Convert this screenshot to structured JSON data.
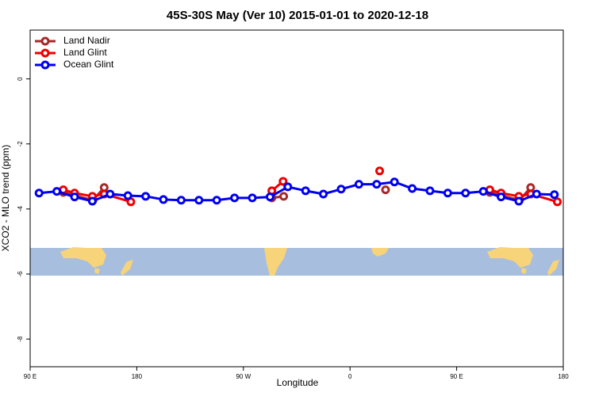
{
  "chart_data": {
    "type": "line",
    "title": "45S-30S May (Ver 10)   2015-01-01 to 2020-12-18",
    "xlabel": "Longitude",
    "ylabel": "XCO2 - MLO trend (ppm)",
    "xlim": [
      90,
      540
    ],
    "xticks": [
      {
        "value": 90,
        "label": "90 E"
      },
      {
        "value": 180,
        "label": "180"
      },
      {
        "value": 270,
        "label": "90 W"
      },
      {
        "value": 360,
        "label": "0"
      },
      {
        "value": 450,
        "label": "90 E"
      },
      {
        "value": 540,
        "label": "180"
      }
    ],
    "ylim": [
      -8.85,
      1.5
    ],
    "yticks": [
      0,
      -2,
      -4,
      -6,
      -8
    ],
    "legend": "top-left",
    "series": [
      {
        "name": "Land Nadir",
        "color": "#a52a2a",
        "x": [
          118,
          143,
          152.5,
          null,
          294,
          304,
          null,
          390,
          null,
          478,
          503,
          512.5
        ],
        "values": [
          -3.49,
          -3.73,
          -3.34,
          null,
          -3.66,
          -3.61,
          null,
          -3.41,
          null,
          -3.49,
          -3.73,
          -3.34
        ]
      },
      {
        "name": "Land Glint",
        "color": "#ee0000",
        "x": [
          118,
          127.5,
          142.5,
          152.5,
          175,
          null,
          294,
          303.5,
          null,
          385,
          null,
          478,
          487.5,
          502.5,
          512.5,
          535
        ],
        "values": [
          -3.41,
          -3.51,
          -3.61,
          -3.54,
          -3.78,
          null,
          -3.44,
          -3.15,
          null,
          -2.83,
          null,
          -3.41,
          -3.51,
          -3.61,
          -3.54,
          -3.78
        ]
      },
      {
        "name": "Ocean Glint",
        "color": "#0000ee",
        "x": [
          97.5,
          112.5,
          127.5,
          142.5,
          157.5,
          172.5,
          187.5,
          202.5,
          217.5,
          232.5,
          247.5,
          262.5,
          277.5,
          292.5,
          307.5,
          322.5,
          337.5,
          352.5,
          367.5,
          382.5,
          397.5,
          412.5,
          427.5,
          442.5,
          457.5,
          472.5,
          487.5,
          502.5,
          517.5,
          532.5
        ],
        "values": [
          -3.51,
          -3.46,
          -3.63,
          -3.76,
          -3.54,
          -3.59,
          -3.61,
          -3.71,
          -3.73,
          -3.73,
          -3.73,
          -3.66,
          -3.66,
          -3.63,
          -3.32,
          -3.44,
          -3.54,
          -3.39,
          -3.24,
          -3.24,
          -3.17,
          -3.37,
          -3.44,
          -3.51,
          -3.51,
          -3.46,
          -3.63,
          -3.76,
          -3.54,
          -3.56
        ]
      }
    ]
  }
}
